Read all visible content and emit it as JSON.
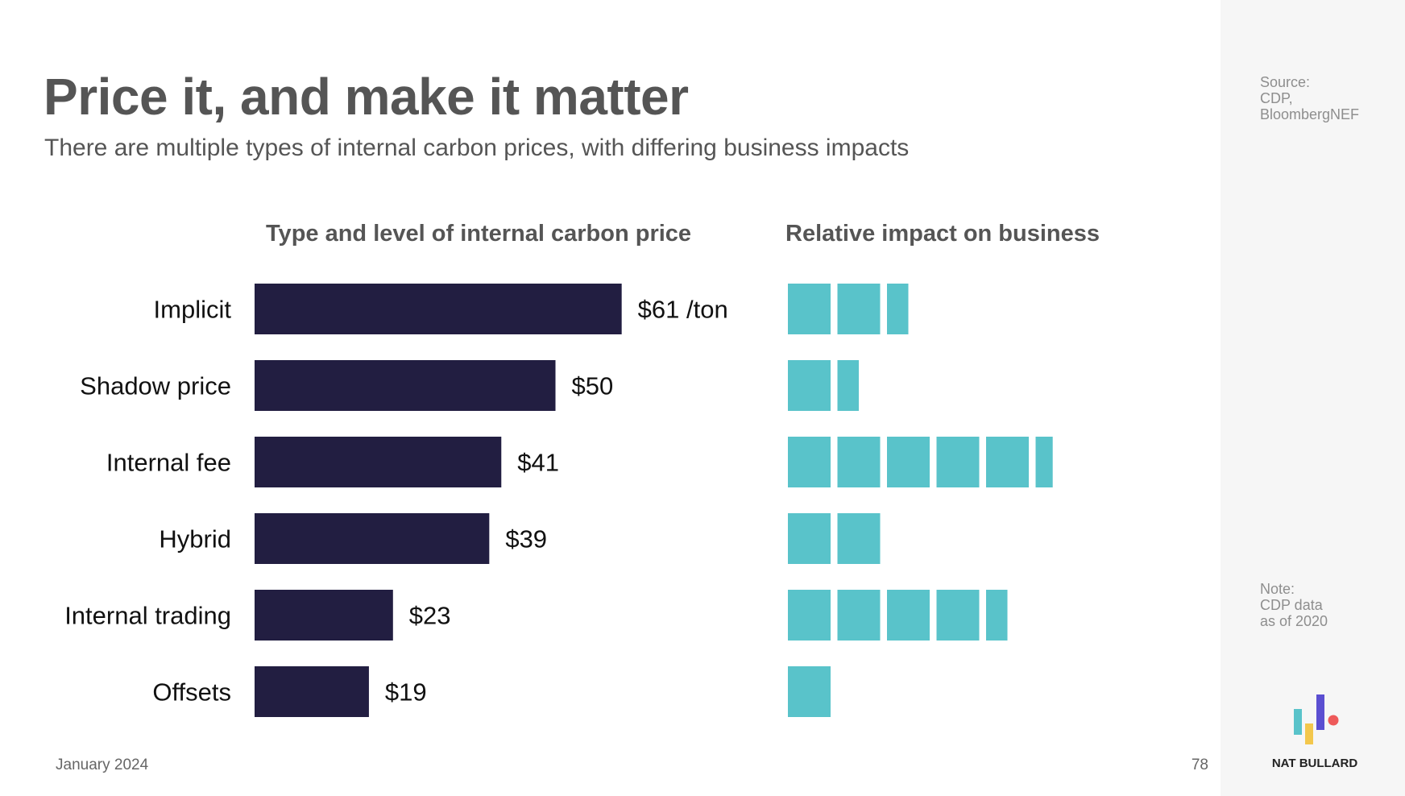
{
  "title": "Price it, and make it matter",
  "subtitle": "There are multiple types of internal carbon prices, with differing business impacts",
  "side": {
    "source": "Source:\nCDP,\nBloombergNEF",
    "note": "Note:\nCDP data\nas of 2020"
  },
  "footer": {
    "date": "January 2024",
    "page": "78",
    "brand": "NAT BULLARD"
  },
  "colors": {
    "bar": "#221e41",
    "impact": "#59c3ca"
  },
  "chart_data": [
    {
      "type": "bar",
      "orientation": "horizontal",
      "title": "Type and level of internal carbon price",
      "categories": [
        "Implicit",
        "Shadow price",
        "Internal fee",
        "Hybrid",
        "Internal trading",
        "Offsets"
      ],
      "values": [
        61,
        50,
        41,
        39,
        23,
        19
      ],
      "value_labels": [
        "$61 /ton",
        "$50",
        "$41",
        "$39",
        "$23",
        "$19"
      ],
      "unit": "$/ton",
      "grid": false
    },
    {
      "type": "bar",
      "orientation": "horizontal",
      "title": "Relative impact on business",
      "categories": [
        "Implicit",
        "Shadow price",
        "Internal fee",
        "Hybrid",
        "Internal trading",
        "Offsets"
      ],
      "values": [
        2.5,
        1.5,
        5.4,
        2,
        4.5,
        1
      ],
      "grid": false
    }
  ]
}
